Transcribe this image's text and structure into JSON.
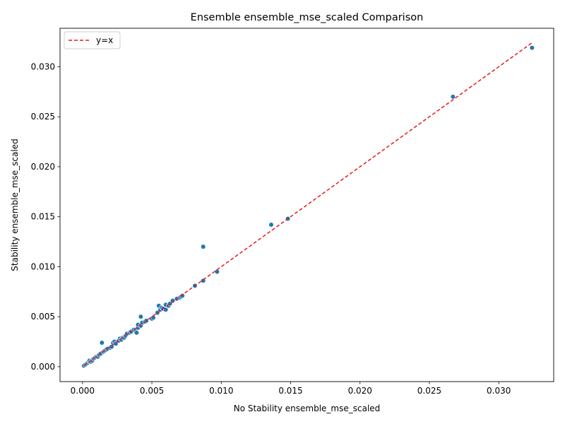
{
  "chart_data": {
    "type": "scatter",
    "title": "Ensemble ensemble_mse_scaled Comparison",
    "xlabel": "No Stability ensemble_mse_scaled",
    "ylabel": "Stability ensemble_mse_scaled",
    "xlim": [
      -0.00162,
      0.03396
    ],
    "ylim": [
      -0.00149,
      0.03385
    ],
    "xticks": [
      0.0,
      0.005,
      0.01,
      0.015,
      0.02,
      0.025,
      0.03
    ],
    "xtick_labels": [
      "0.000",
      "0.005",
      "0.010",
      "0.015",
      "0.020",
      "0.025",
      "0.030"
    ],
    "yticks": [
      0.0,
      0.005,
      0.01,
      0.015,
      0.02,
      0.025,
      0.03
    ],
    "ytick_labels": [
      "0.000",
      "0.005",
      "0.010",
      "0.015",
      "0.020",
      "0.025",
      "0.030"
    ],
    "grid": false,
    "legend": {
      "position": "top-left",
      "entries": [
        "y=x"
      ]
    },
    "reference_line": {
      "name": "y=x",
      "style": "dashed",
      "color": "#e41a1c",
      "x": [
        0.0001,
        0.0324
      ],
      "y": [
        0.0001,
        0.0324
      ]
    },
    "series": [
      {
        "color": "#1f77b4",
        "points": [
          [
            0.0001,
            0.0001
          ],
          [
            0.0002,
            0.0002
          ],
          [
            0.0003,
            0.0003
          ],
          [
            0.0004,
            0.0004
          ],
          [
            0.0005,
            0.0005
          ],
          [
            0.0005,
            0.0006
          ],
          [
            0.0006,
            0.0005
          ],
          [
            0.0007,
            0.0006
          ],
          [
            0.0008,
            0.0008
          ],
          [
            0.0009,
            0.0009
          ],
          [
            0.001,
            0.001
          ],
          [
            0.0011,
            0.001
          ],
          [
            0.0012,
            0.0012
          ],
          [
            0.0013,
            0.0013
          ],
          [
            0.0014,
            0.0024
          ],
          [
            0.0015,
            0.0015
          ],
          [
            0.0016,
            0.0016
          ],
          [
            0.0017,
            0.0017
          ],
          [
            0.0018,
            0.0018
          ],
          [
            0.002,
            0.0019
          ],
          [
            0.0021,
            0.002
          ],
          [
            0.0022,
            0.0024
          ],
          [
            0.0023,
            0.0025
          ],
          [
            0.0024,
            0.0023
          ],
          [
            0.0026,
            0.0026
          ],
          [
            0.0027,
            0.0028
          ],
          [
            0.0028,
            0.0027
          ],
          [
            0.0029,
            0.0029
          ],
          [
            0.003,
            0.0029
          ],
          [
            0.0031,
            0.0031
          ],
          [
            0.0032,
            0.0033
          ],
          [
            0.0034,
            0.0034
          ],
          [
            0.0035,
            0.0035
          ],
          [
            0.0037,
            0.0037
          ],
          [
            0.0038,
            0.0036
          ],
          [
            0.0039,
            0.0034
          ],
          [
            0.004,
            0.0039
          ],
          [
            0.004,
            0.0042
          ],
          [
            0.0042,
            0.0041
          ],
          [
            0.0042,
            0.005
          ],
          [
            0.0043,
            0.0044
          ],
          [
            0.0045,
            0.0045
          ],
          [
            0.0046,
            0.0046
          ],
          [
            0.005,
            0.0048
          ],
          [
            0.0051,
            0.0049
          ],
          [
            0.0054,
            0.0054
          ],
          [
            0.0055,
            0.0061
          ],
          [
            0.0056,
            0.0057
          ],
          [
            0.0057,
            0.0059
          ],
          [
            0.0058,
            0.0058
          ],
          [
            0.006,
            0.0057
          ],
          [
            0.006,
            0.0062
          ],
          [
            0.0062,
            0.0061
          ],
          [
            0.0063,
            0.0063
          ],
          [
            0.0065,
            0.0066
          ],
          [
            0.0068,
            0.0068
          ],
          [
            0.007,
            0.0069
          ],
          [
            0.0071,
            0.007
          ],
          [
            0.0072,
            0.0071
          ],
          [
            0.0081,
            0.0081
          ],
          [
            0.0087,
            0.0086
          ],
          [
            0.0087,
            0.012
          ],
          [
            0.0097,
            0.0095
          ],
          [
            0.0136,
            0.0142
          ],
          [
            0.0148,
            0.0148
          ],
          [
            0.0267,
            0.027
          ],
          [
            0.0324,
            0.0319
          ]
        ]
      }
    ]
  }
}
